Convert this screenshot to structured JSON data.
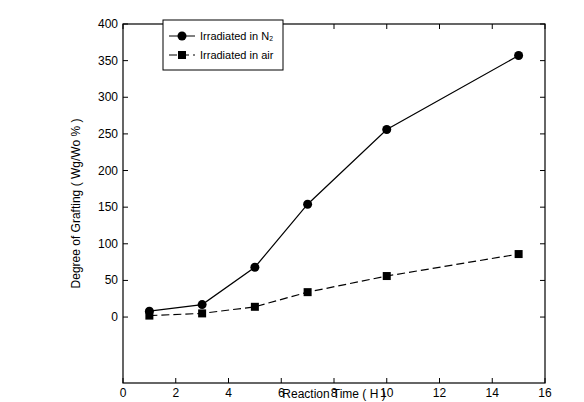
{
  "chart_data": {
    "type": "line",
    "x_label": "Reaction Time ( H )",
    "y_label": "Degree of Grafting ( Wg/Wo % )",
    "x": [
      1,
      3,
      5,
      7,
      10,
      15
    ],
    "series": [
      {
        "name": "Irradiated in N₂",
        "color": "#000000",
        "marker": "circle",
        "line_style": "solid",
        "values": [
          8,
          17,
          68,
          154,
          256,
          357
        ]
      },
      {
        "name": "Irradiated in air",
        "color": "#000000",
        "marker": "square",
        "line_style": "dashed",
        "values": [
          2,
          5,
          14,
          34,
          56,
          86
        ]
      }
    ],
    "xlim": [
      0,
      16
    ],
    "xticks": [
      0,
      2,
      4,
      6,
      8,
      10,
      12,
      14,
      16
    ],
    "ylim": [
      -90,
      400
    ],
    "yticks": [
      0,
      50,
      100,
      150,
      200,
      250,
      300,
      350,
      400
    ],
    "legend": "upper left",
    "grid": false
  }
}
